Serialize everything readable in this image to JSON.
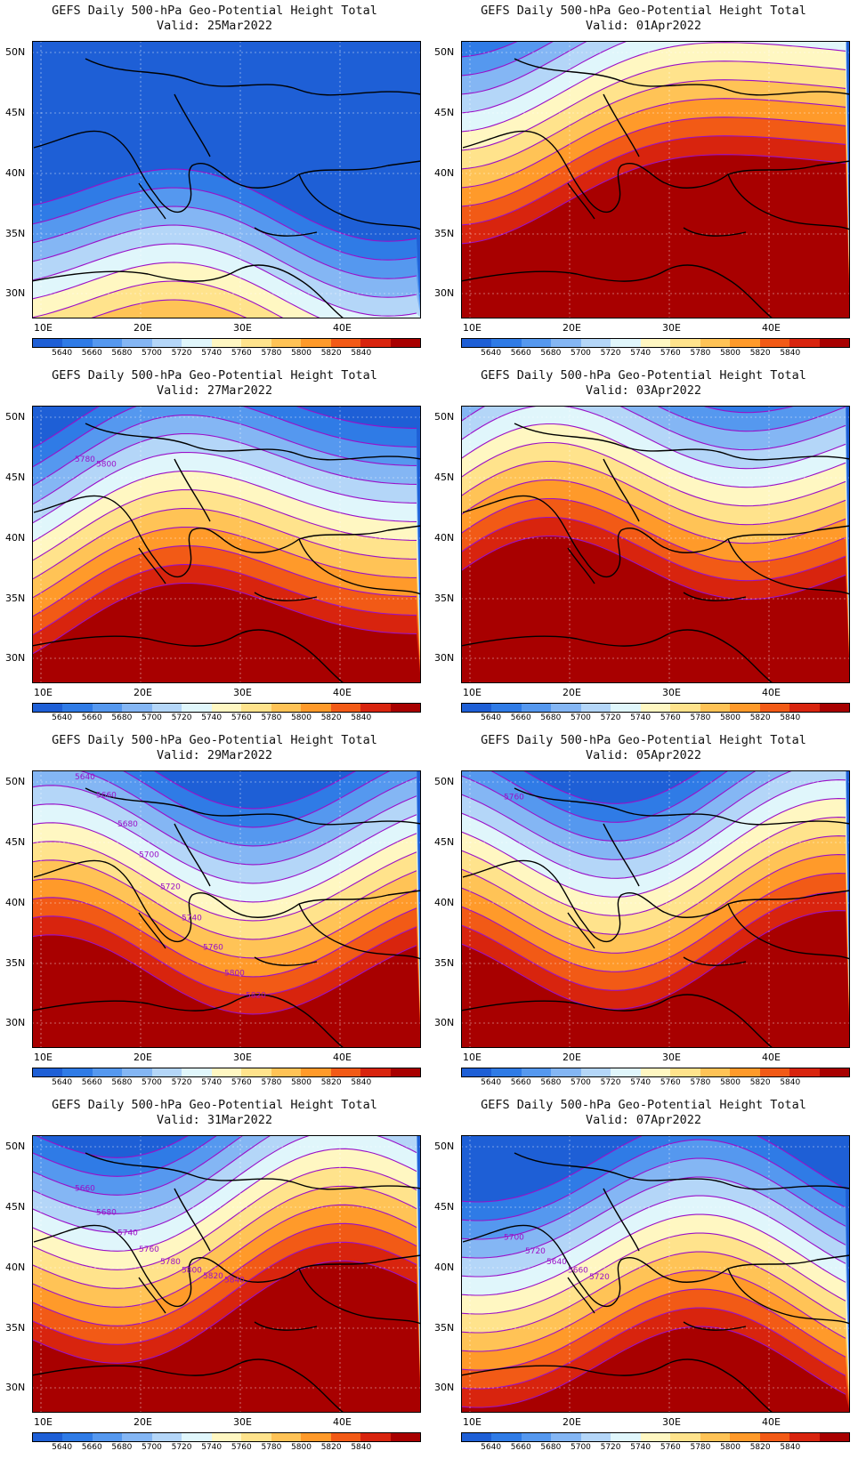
{
  "colorbar": {
    "colors": [
      "#1e5fd6",
      "#2f7be6",
      "#5598ef",
      "#84b6f4",
      "#b4d6f8",
      "#e0f6fb",
      "#fff7c2",
      "#ffe38c",
      "#ffc356",
      "#ff9a2a",
      "#f25a16",
      "#d8240e",
      "#a80000"
    ],
    "labels": [
      "5640",
      "5660",
      "5680",
      "5700",
      "5720",
      "5740",
      "5760",
      "5780",
      "5800",
      "5820",
      "5840"
    ]
  },
  "axes": {
    "lat_labels": [
      "50N",
      "45N",
      "40N",
      "35N",
      "30N"
    ],
    "lon_labels": [
      "10E",
      "20E",
      "30E",
      "40E"
    ]
  },
  "panels": [
    {
      "title": "GEFS Daily 500-hPa Geo-Potential Height Total",
      "valid": "Valid: 25Mar2022",
      "ridge": -1.0,
      "contour_labels": []
    },
    {
      "title": "GEFS Daily 500-hPa Geo-Potential Height Total",
      "valid": "Valid: 01Apr2022",
      "ridge": 1.0,
      "contour_labels": []
    },
    {
      "title": "GEFS Daily 500-hPa Geo-Potential Height Total",
      "valid": "Valid: 27Mar2022",
      "ridge": 0.4,
      "contour_labels": [
        "5780",
        "5800"
      ]
    },
    {
      "title": "GEFS Daily 500-hPa Geo-Potential Height Total",
      "valid": "Valid: 03Apr2022",
      "ridge": 0.8,
      "contour_labels": []
    },
    {
      "title": "GEFS Daily 500-hPa Geo-Potential Height Total",
      "valid": "Valid: 29Mar2022",
      "ridge": 0.5,
      "contour_labels": [
        "5640",
        "5660",
        "5680",
        "5700",
        "5720",
        "5740",
        "5760",
        "5800",
        "5820"
      ]
    },
    {
      "title": "GEFS Daily 500-hPa Geo-Potential Height Total",
      "valid": "Valid: 05Apr2022",
      "ridge": 0.6,
      "contour_labels": [
        "5760"
      ]
    },
    {
      "title": "GEFS Daily 500-hPa Geo-Potential Height Total",
      "valid": "Valid: 31Mar2022",
      "ridge": 0.7,
      "contour_labels": [
        "5660",
        "5680",
        "5740",
        "5760",
        "5780",
        "5800",
        "5820",
        "5840"
      ]
    },
    {
      "title": "GEFS Daily 500-hPa Geo-Potential Height Total",
      "valid": "Valid: 07Apr2022",
      "ridge": 0.2,
      "contour_labels": [
        "5700",
        "5720",
        "5640",
        "5660",
        "5720"
      ]
    }
  ]
}
